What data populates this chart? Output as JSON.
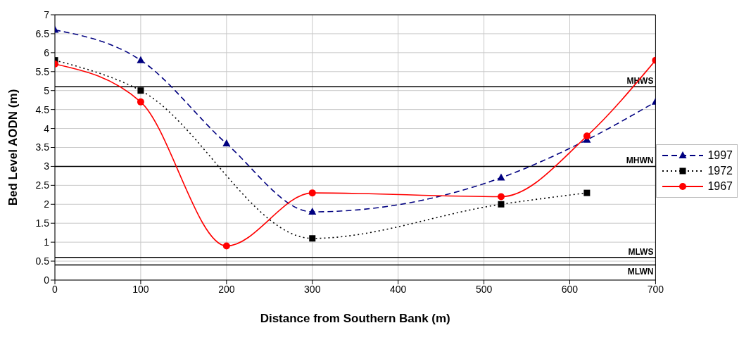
{
  "chart_data": {
    "type": "line",
    "xlabel": "Distance from Southern Bank (m)",
    "ylabel": "Bed Level AODN (m)",
    "xlim": [
      0,
      700
    ],
    "xticks": [
      0,
      100,
      200,
      300,
      400,
      500,
      600,
      700
    ],
    "ylim": [
      0,
      7
    ],
    "yticks": [
      0,
      0.5,
      1,
      1.5,
      2,
      2.5,
      3,
      3.5,
      4,
      4.5,
      5,
      5.5,
      6,
      6.5,
      7
    ],
    "grid": true,
    "legend": "right",
    "series": [
      {
        "name": "1997",
        "color": "#000080",
        "line_style": "dashed",
        "marker": "triangle",
        "x": [
          0,
          100,
          200,
          300,
          520,
          620,
          700
        ],
        "values": [
          6.6,
          5.8,
          3.6,
          1.8,
          2.7,
          3.7,
          4.7
        ]
      },
      {
        "name": "1972",
        "color": "#000000",
        "line_style": "dotted",
        "marker": "square",
        "x": [
          0,
          100,
          300,
          520,
          620
        ],
        "values": [
          5.8,
          5.0,
          1.1,
          2.0,
          2.3
        ]
      },
      {
        "name": "1967",
        "color": "#ff0000",
        "line_style": "solid",
        "marker": "circle",
        "x": [
          0,
          100,
          200,
          300,
          520,
          620,
          700
        ],
        "values": [
          5.7,
          4.7,
          0.9,
          2.3,
          2.2,
          3.8,
          5.8
        ]
      }
    ],
    "ref_lines": [
      {
        "axis": "y",
        "value": 5.1,
        "label": "MHWS",
        "color": "#000000"
      },
      {
        "axis": "y",
        "value": 3.0,
        "label": "MHWN",
        "color": "#000000"
      },
      {
        "axis": "y",
        "value": 0.6,
        "label": "MLWS",
        "color": "#000000"
      },
      {
        "axis": "y",
        "value": 0.4,
        "label": "MLWN",
        "color": "#000000"
      }
    ]
  }
}
